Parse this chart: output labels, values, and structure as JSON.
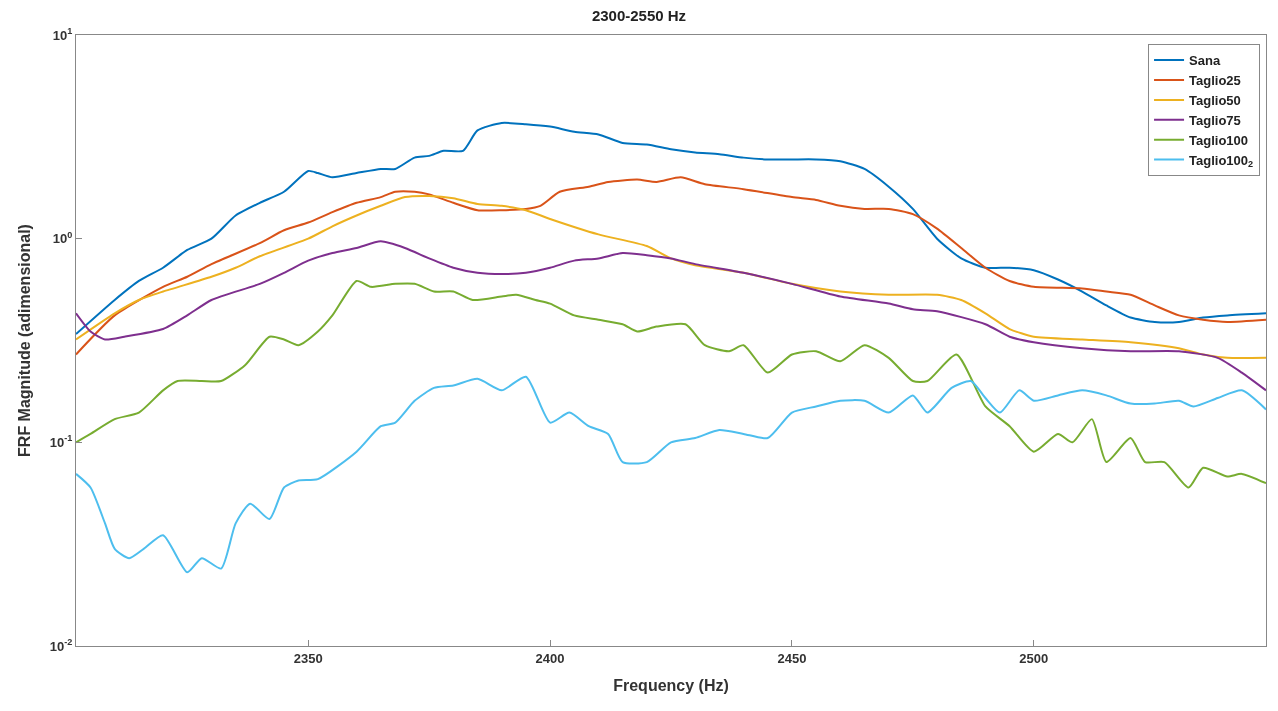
{
  "chart_data": {
    "type": "line",
    "title": "2300-2550 Hz",
    "xlabel": "Frequency (Hz)",
    "ylabel": "FRF Magnitude (adimensional)",
    "xlim": [
      2302,
      2548
    ],
    "xticks": [
      2350,
      2400,
      2450,
      2500
    ],
    "ylim": [
      0.01,
      10
    ],
    "yticks": [
      {
        "value": 0.01,
        "label": "10$^{-2}$"
      },
      {
        "value": 0.1,
        "label": "10$^{-1}$"
      },
      {
        "value": 1,
        "label": "10$^{0}$"
      },
      {
        "value": 10,
        "label": "10$^{1}$"
      }
    ],
    "log": "y",
    "legend": "top right",
    "marker": "none",
    "line_style": "solid",
    "series": [
      {
        "name": "Sana",
        "color": "#0072bd",
        "x": [
          2302,
          2310,
          2315,
          2320,
          2325,
          2330,
          2335,
          2340,
          2345,
          2350,
          2352,
          2355,
          2360,
          2365,
          2368,
          2372,
          2375,
          2378,
          2382,
          2385,
          2390,
          2395,
          2400,
          2405,
          2410,
          2415,
          2420,
          2425,
          2430,
          2435,
          2440,
          2445,
          2450,
          2455,
          2460,
          2465,
          2470,
          2475,
          2480,
          2485,
          2490,
          2495,
          2500,
          2505,
          2510,
          2515,
          2520,
          2525,
          2530,
          2535,
          2540,
          2548
        ],
        "values": [
          0.34,
          0.5,
          0.62,
          0.72,
          0.88,
          1.0,
          1.3,
          1.5,
          1.7,
          2.15,
          2.1,
          2.0,
          2.1,
          2.2,
          2.2,
          2.5,
          2.55,
          2.7,
          2.7,
          3.4,
          3.7,
          3.65,
          3.55,
          3.35,
          3.25,
          2.95,
          2.9,
          2.75,
          2.65,
          2.6,
          2.5,
          2.45,
          2.45,
          2.45,
          2.4,
          2.2,
          1.8,
          1.4,
          1.0,
          0.8,
          0.72,
          0.72,
          0.7,
          0.63,
          0.55,
          0.47,
          0.41,
          0.39,
          0.39,
          0.41,
          0.42,
          0.43
        ]
      },
      {
        "name": "Taglio25",
        "color": "#d95319",
        "x": [
          2302,
          2310,
          2320,
          2325,
          2330,
          2340,
          2345,
          2350,
          2355,
          2360,
          2365,
          2368,
          2372,
          2375,
          2380,
          2385,
          2390,
          2395,
          2398,
          2402,
          2408,
          2412,
          2418,
          2422,
          2427,
          2432,
          2440,
          2450,
          2455,
          2460,
          2465,
          2470,
          2475,
          2480,
          2485,
          2490,
          2495,
          2500,
          2510,
          2515,
          2520,
          2525,
          2530,
          2535,
          2540,
          2548
        ],
        "values": [
          0.27,
          0.42,
          0.58,
          0.65,
          0.75,
          0.95,
          1.1,
          1.2,
          1.35,
          1.5,
          1.6,
          1.7,
          1.7,
          1.65,
          1.5,
          1.38,
          1.38,
          1.4,
          1.45,
          1.7,
          1.8,
          1.9,
          1.95,
          1.9,
          2.0,
          1.85,
          1.75,
          1.6,
          1.55,
          1.45,
          1.4,
          1.4,
          1.32,
          1.12,
          0.9,
          0.72,
          0.62,
          0.58,
          0.57,
          0.55,
          0.53,
          0.47,
          0.42,
          0.4,
          0.39,
          0.4
        ]
      },
      {
        "name": "Taglio50",
        "color": "#edb120",
        "x": [
          2302,
          2310,
          2315,
          2320,
          2330,
          2335,
          2340,
          2350,
          2355,
          2360,
          2365,
          2370,
          2375,
          2380,
          2385,
          2390,
          2395,
          2400,
          2410,
          2420,
          2425,
          2430,
          2440,
          2450,
          2460,
          2470,
          2480,
          2485,
          2490,
          2495,
          2500,
          2510,
          2520,
          2530,
          2535,
          2540,
          2548
        ],
        "values": [
          0.32,
          0.43,
          0.5,
          0.55,
          0.65,
          0.72,
          0.82,
          1.0,
          1.15,
          1.3,
          1.45,
          1.6,
          1.62,
          1.58,
          1.48,
          1.45,
          1.38,
          1.25,
          1.05,
          0.92,
          0.8,
          0.74,
          0.68,
          0.6,
          0.55,
          0.53,
          0.53,
          0.5,
          0.43,
          0.36,
          0.33,
          0.32,
          0.31,
          0.29,
          0.27,
          0.26,
          0.26
        ]
      },
      {
        "name": "Taglio75",
        "color": "#7e2f8e",
        "x": [
          2302,
          2305,
          2308,
          2312,
          2320,
          2325,
          2330,
          2340,
          2345,
          2350,
          2355,
          2360,
          2365,
          2370,
          2375,
          2380,
          2385,
          2390,
          2395,
          2400,
          2405,
          2410,
          2415,
          2420,
          2425,
          2430,
          2440,
          2450,
          2460,
          2470,
          2475,
          2480,
          2490,
          2495,
          2500,
          2510,
          2520,
          2530,
          2538,
          2543,
          2548
        ],
        "values": [
          0.43,
          0.35,
          0.32,
          0.33,
          0.36,
          0.42,
          0.5,
          0.6,
          0.68,
          0.78,
          0.85,
          0.9,
          0.97,
          0.9,
          0.8,
          0.72,
          0.68,
          0.67,
          0.68,
          0.72,
          0.78,
          0.8,
          0.85,
          0.83,
          0.8,
          0.75,
          0.68,
          0.6,
          0.52,
          0.48,
          0.45,
          0.44,
          0.38,
          0.33,
          0.31,
          0.29,
          0.28,
          0.28,
          0.26,
          0.22,
          0.18
        ]
      },
      {
        "name": "Taglio100",
        "color": "#77ac30",
        "x": [
          2302,
          2305,
          2310,
          2315,
          2320,
          2323,
          2328,
          2332,
          2337,
          2342,
          2345,
          2348,
          2352,
          2355,
          2360,
          2363,
          2368,
          2372,
          2376,
          2380,
          2384,
          2390,
          2393,
          2397,
          2400,
          2405,
          2410,
          2415,
          2418,
          2422,
          2428,
          2432,
          2437,
          2440,
          2445,
          2450,
          2455,
          2460,
          2465,
          2470,
          2475,
          2478,
          2484,
          2490,
          2495,
          2500,
          2505,
          2508,
          2512,
          2515,
          2520,
          2523,
          2527,
          2532,
          2535,
          2540,
          2543,
          2548
        ],
        "values": [
          0.1,
          0.11,
          0.13,
          0.14,
          0.18,
          0.2,
          0.2,
          0.2,
          0.24,
          0.33,
          0.32,
          0.3,
          0.35,
          0.42,
          0.62,
          0.58,
          0.6,
          0.6,
          0.55,
          0.55,
          0.5,
          0.52,
          0.53,
          0.5,
          0.48,
          0.42,
          0.4,
          0.38,
          0.35,
          0.37,
          0.38,
          0.3,
          0.28,
          0.3,
          0.22,
          0.27,
          0.28,
          0.25,
          0.3,
          0.26,
          0.2,
          0.2,
          0.27,
          0.15,
          0.12,
          0.09,
          0.11,
          0.1,
          0.13,
          0.08,
          0.105,
          0.08,
          0.08,
          0.06,
          0.075,
          0.068,
          0.07,
          0.063
        ]
      },
      {
        "name": "Taglio100$_{2}$",
        "color": "#4dbeee",
        "x": [
          2302,
          2305,
          2308,
          2310,
          2313,
          2316,
          2320,
          2325,
          2328,
          2332,
          2335,
          2338,
          2342,
          2345,
          2348,
          2352,
          2360,
          2365,
          2368,
          2372,
          2376,
          2380,
          2385,
          2390,
          2395,
          2400,
          2404,
          2408,
          2412,
          2415,
          2420,
          2425,
          2430,
          2435,
          2440,
          2445,
          2450,
          2455,
          2460,
          2465,
          2470,
          2475,
          2478,
          2483,
          2487,
          2490,
          2493,
          2497,
          2500,
          2505,
          2510,
          2515,
          2520,
          2525,
          2530,
          2533,
          2538,
          2543,
          2548
        ],
        "values": [
          0.07,
          0.06,
          0.04,
          0.03,
          0.027,
          0.03,
          0.035,
          0.023,
          0.027,
          0.024,
          0.04,
          0.05,
          0.042,
          0.06,
          0.065,
          0.066,
          0.09,
          0.12,
          0.125,
          0.16,
          0.185,
          0.19,
          0.205,
          0.18,
          0.21,
          0.125,
          0.14,
          0.12,
          0.11,
          0.08,
          0.08,
          0.1,
          0.105,
          0.115,
          0.11,
          0.105,
          0.14,
          0.15,
          0.16,
          0.16,
          0.14,
          0.17,
          0.14,
          0.185,
          0.2,
          0.165,
          0.14,
          0.18,
          0.16,
          0.17,
          0.18,
          0.17,
          0.155,
          0.155,
          0.16,
          0.15,
          0.165,
          0.18,
          0.145
        ]
      }
    ]
  }
}
